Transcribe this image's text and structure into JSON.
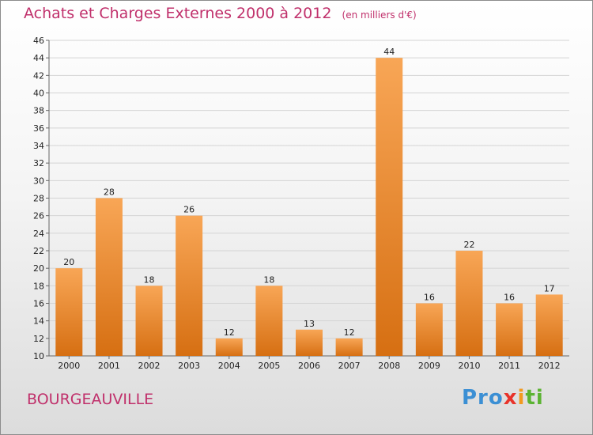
{
  "title": "Achats et Charges Externes 2000 à 2012",
  "unit": "(en milliers d'€)",
  "place_name": "BOURGEAUVILLE",
  "logo": {
    "text": "Proxiti",
    "parts": [
      "Pro",
      "x",
      "i",
      "ti"
    ]
  },
  "colors": {
    "bar_top": "#f8a656",
    "bar_bottom": "#d66f12",
    "title": "#c0306b"
  },
  "chart_data": {
    "type": "bar",
    "categories": [
      "2000",
      "2001",
      "2002",
      "2003",
      "2004",
      "2005",
      "2006",
      "2007",
      "2008",
      "2009",
      "2010",
      "2011",
      "2012"
    ],
    "values": [
      20,
      28,
      18,
      26,
      12,
      18,
      13,
      12,
      44,
      16,
      22,
      16,
      17
    ],
    "ylim": [
      10,
      46
    ],
    "yticks": [
      10,
      12,
      14,
      16,
      18,
      20,
      22,
      24,
      26,
      28,
      30,
      32,
      34,
      36,
      38,
      40,
      42,
      44,
      46
    ],
    "grid": true
  }
}
